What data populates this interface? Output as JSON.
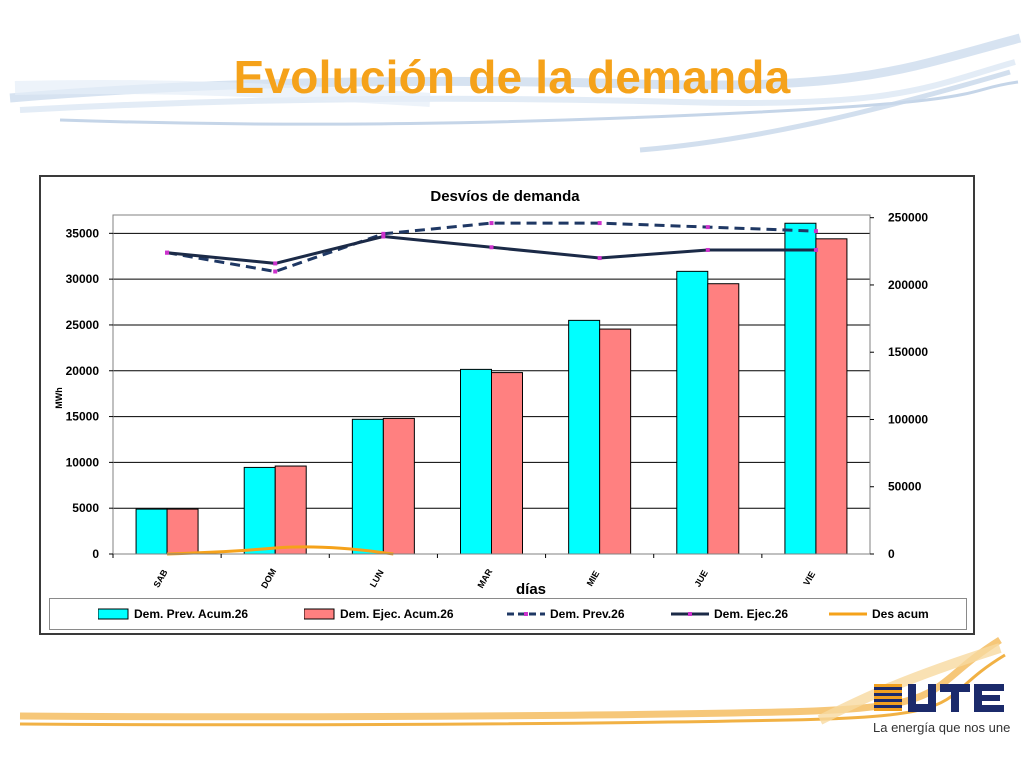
{
  "slide": {
    "title": "Evolución de la demanda"
  },
  "logo": {
    "name": "UTE",
    "tagline": "La energía que nos une"
  },
  "colors": {
    "title": "#f5a21a",
    "bar_prev": "#00ffff",
    "bar_ejec": "#ff8080",
    "line_prev": "#1f3864",
    "line_ejec": "#1b2a47",
    "line_des": "#f5a21a",
    "marker": "#cc33cc"
  },
  "chart_data": {
    "type": "bar",
    "title": "Desvíos de demanda",
    "xlabel": "días",
    "ylabel": "MWh",
    "y2label": "",
    "categories": [
      "SAB",
      "DOM",
      "LUN",
      "MAR",
      "MIE",
      "JUE",
      "VIE"
    ],
    "ylim": [
      0,
      35000
    ],
    "yticks": [
      0,
      5000,
      10000,
      15000,
      20000,
      25000,
      30000,
      35000
    ],
    "y2lim": [
      0,
      250000
    ],
    "y2ticks": [
      0,
      50000,
      100000,
      150000,
      200000,
      250000
    ],
    "grid": true,
    "legend_position": "bottom",
    "series": [
      {
        "name": "Dem. Prev. Acum.26",
        "kind": "bar",
        "axis": "left",
        "values": [
          4900,
          9450,
          14700,
          20150,
          25500,
          30850,
          36100
        ]
      },
      {
        "name": "Dem. Ejec. Acum.26",
        "kind": "bar",
        "axis": "left",
        "values": [
          4900,
          9600,
          14800,
          19800,
          24550,
          29500,
          34400
        ]
      },
      {
        "name": "Dem. Prev.26",
        "kind": "line",
        "style": "dashed",
        "axis": "right",
        "values": [
          224000,
          210000,
          238000,
          246000,
          246000,
          243000,
          240000
        ]
      },
      {
        "name": "Dem. Ejec.26",
        "kind": "line",
        "style": "solid",
        "axis": "right",
        "values": [
          224000,
          216000,
          236000,
          228000,
          220000,
          226000,
          226000
        ]
      },
      {
        "name": "Des acum",
        "kind": "line",
        "style": "solid",
        "axis": "left",
        "values": [
          0,
          650,
          300,
          null,
          null,
          null,
          null
        ]
      }
    ]
  }
}
